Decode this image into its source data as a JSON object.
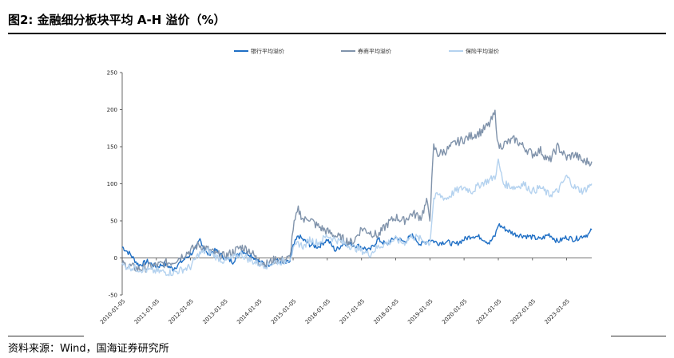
{
  "header": {
    "title": "图2:   金融细分板块平均 A-H 溢价（%）"
  },
  "footer": {
    "source": "资料来源：Wind，国海证券研究所"
  },
  "chart_data": {
    "type": "line",
    "title": "",
    "xlabel": "",
    "ylabel": "",
    "ylim": [
      -50,
      250
    ],
    "y_ticks": [
      -50,
      0,
      50,
      100,
      150,
      200,
      250
    ],
    "x_range": [
      "2010-01-05",
      "2023-09-30"
    ],
    "x_ticks": [
      "2010-01-05",
      "2011-01-05",
      "2012-01-05",
      "2013-01-05",
      "2014-01-05",
      "2015-01-05",
      "2016-01-05",
      "2017-01-05",
      "2018-01-05",
      "2019-01-05",
      "2020-01-05",
      "2021-01-05",
      "2022-01-05",
      "2023-01-05"
    ],
    "grid": false,
    "legend_position": "top",
    "series": [
      {
        "name": "银行平均溢价",
        "color": "#1f6fc5",
        "x": [
          "2010-01-05",
          "2010-04-01",
          "2010-07-01",
          "2010-10-01",
          "2011-01-05",
          "2011-04-01",
          "2011-07-01",
          "2011-10-01",
          "2012-01-05",
          "2012-03-01",
          "2012-04-15",
          "2012-07-01",
          "2012-10-01",
          "2013-01-05",
          "2013-04-01",
          "2013-07-01",
          "2013-10-01",
          "2014-01-05",
          "2014-04-01",
          "2014-07-01",
          "2014-10-01",
          "2014-12-01",
          "2015-01-05",
          "2015-03-01",
          "2015-04-15",
          "2015-07-01",
          "2015-10-01",
          "2016-01-05",
          "2016-04-01",
          "2016-07-01",
          "2016-10-01",
          "2017-01-05",
          "2017-04-01",
          "2017-07-01",
          "2017-10-01",
          "2018-01-05",
          "2018-04-01",
          "2018-07-01",
          "2018-10-01",
          "2019-01-05",
          "2019-04-01",
          "2019-07-01",
          "2019-10-01",
          "2020-01-05",
          "2020-04-01",
          "2020-07-01",
          "2020-10-01",
          "2020-12-01",
          "2021-01-05",
          "2021-04-01",
          "2021-07-01",
          "2021-10-01",
          "2022-01-05",
          "2022-04-01",
          "2022-07-01",
          "2022-10-01",
          "2023-01-05",
          "2023-04-01",
          "2023-07-01",
          "2023-09-01",
          "2023-09-30"
        ],
        "values": [
          15,
          5,
          -10,
          -5,
          -12,
          -8,
          -15,
          -5,
          5,
          12,
          25,
          5,
          10,
          0,
          -5,
          10,
          5,
          -5,
          -10,
          -3,
          -8,
          -5,
          15,
          30,
          25,
          18,
          15,
          25,
          10,
          20,
          18,
          15,
          10,
          25,
          18,
          28,
          22,
          30,
          18,
          25,
          20,
          22,
          18,
          25,
          30,
          28,
          20,
          30,
          45,
          38,
          32,
          30,
          28,
          25,
          32,
          22,
          28,
          25,
          30,
          32,
          38
        ]
      },
      {
        "name": "券商平均溢价",
        "color": "#8093ab",
        "x": [
          "2010-01-05",
          "2010-07-01",
          "2011-01-05",
          "2011-07-01",
          "2012-01-05",
          "2012-04-01",
          "2012-07-01",
          "2012-10-01",
          "2013-01-05",
          "2013-04-01",
          "2013-07-01",
          "2013-10-01",
          "2014-01-05",
          "2014-04-01",
          "2014-07-01",
          "2014-10-01",
          "2014-12-01",
          "2015-01-05",
          "2015-03-01",
          "2015-05-01",
          "2015-06-15",
          "2015-09-01",
          "2015-12-01",
          "2016-04-01",
          "2016-07-01",
          "2016-10-01",
          "2017-01-05",
          "2017-04-01",
          "2017-07-01",
          "2017-10-01",
          "2018-01-05",
          "2018-04-01",
          "2018-07-01",
          "2018-10-01",
          "2018-12-01",
          "2019-01-05",
          "2019-02-15",
          "2019-04-01",
          "2019-07-01",
          "2019-10-01",
          "2020-01-05",
          "2020-04-01",
          "2020-07-01",
          "2020-10-01",
          "2020-12-01",
          "2021-01-05",
          "2021-04-01",
          "2021-07-01",
          "2021-10-01",
          "2022-01-05",
          "2022-04-01",
          "2022-07-01",
          "2022-10-01",
          "2023-01-05",
          "2023-04-01",
          "2023-07-01",
          "2023-09-30"
        ],
        "values": [
          -8,
          -15,
          -10,
          -5,
          10,
          18,
          12,
          5,
          2,
          8,
          15,
          10,
          -5,
          -8,
          -2,
          -3,
          0,
          40,
          65,
          50,
          55,
          45,
          38,
          30,
          25,
          20,
          40,
          35,
          30,
          45,
          55,
          50,
          60,
          55,
          75,
          55,
          150,
          140,
          145,
          155,
          160,
          165,
          170,
          180,
          195,
          150,
          155,
          160,
          150,
          140,
          145,
          130,
          150,
          135,
          140,
          130,
          130
        ]
      },
      {
        "name": "保险平均溢价",
        "color": "#b4d2ef",
        "x": [
          "2010-01-05",
          "2010-07-01",
          "2011-01-05",
          "2011-07-01",
          "2012-01-05",
          "2012-04-01",
          "2012-07-01",
          "2012-10-01",
          "2013-01-05",
          "2013-04-01",
          "2013-07-01",
          "2013-10-01",
          "2014-01-05",
          "2014-04-01",
          "2014-07-01",
          "2014-10-01",
          "2014-12-01",
          "2015-01-05",
          "2015-03-01",
          "2015-05-01",
          "2015-07-01",
          "2015-10-01",
          "2016-01-05",
          "2016-04-01",
          "2016-07-01",
          "2016-10-01",
          "2017-01-05",
          "2017-04-01",
          "2017-07-01",
          "2017-10-01",
          "2018-01-05",
          "2018-04-01",
          "2018-07-01",
          "2018-10-01",
          "2019-01-05",
          "2019-02-15",
          "2019-04-01",
          "2019-07-01",
          "2019-10-01",
          "2020-01-05",
          "2020-04-01",
          "2020-07-01",
          "2020-10-01",
          "2020-12-01",
          "2021-01-05",
          "2021-03-01",
          "2021-07-01",
          "2021-10-01",
          "2022-01-05",
          "2022-04-01",
          "2022-07-01",
          "2022-10-01",
          "2023-01-05",
          "2023-04-01",
          "2023-07-01",
          "2023-09-30"
        ],
        "values": [
          -10,
          -15,
          -18,
          -20,
          -12,
          5,
          10,
          2,
          -5,
          0,
          5,
          -3,
          -8,
          -10,
          -5,
          -5,
          0,
          10,
          20,
          15,
          25,
          20,
          30,
          25,
          20,
          15,
          10,
          5,
          15,
          20,
          25,
          20,
          30,
          25,
          20,
          80,
          85,
          80,
          90,
          95,
          90,
          100,
          105,
          110,
          130,
          100,
          95,
          100,
          90,
          95,
          85,
          90,
          110,
          95,
          90,
          100
        ]
      }
    ]
  }
}
